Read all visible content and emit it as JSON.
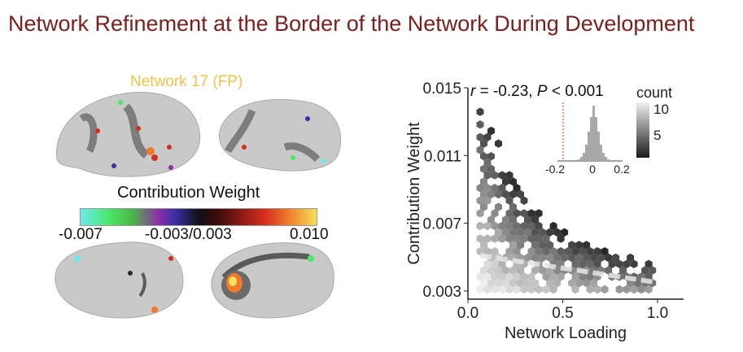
{
  "slide": {
    "title": "Network Refinement at the Border of the Network During Development"
  },
  "brain": {
    "network_label": "Network 17 (FP)",
    "colorbar_title": "Contribution Weight",
    "colorbar_ticks": [
      "-0.007",
      "-0.003/0.003",
      "0.010"
    ]
  },
  "chart_data": {
    "type": "heatmap",
    "xlabel": "Network Loading",
    "ylabel": "Contribution Weight",
    "xlim": [
      0.0,
      1.0
    ],
    "ylim": [
      0.003,
      0.015
    ],
    "x_ticks": [
      "0.0",
      "0.5",
      "1.0"
    ],
    "y_ticks": [
      "0.003",
      "0.007",
      "0.011",
      "0.015"
    ],
    "annotation": {
      "r": "r",
      "r_value": " = -0.23, ",
      "p": "P",
      "p_value": " < 0.001"
    },
    "legend": {
      "title": "count",
      "ticks": [
        "10",
        "5"
      ]
    },
    "inset": {
      "type": "histogram",
      "x_ticks": [
        "-0.2",
        "0",
        "0.2"
      ],
      "observed_r": -0.23
    },
    "trend_line": {
      "x": [
        0.0,
        1.0
      ],
      "y": [
        0.0051,
        0.0035
      ]
    }
  }
}
